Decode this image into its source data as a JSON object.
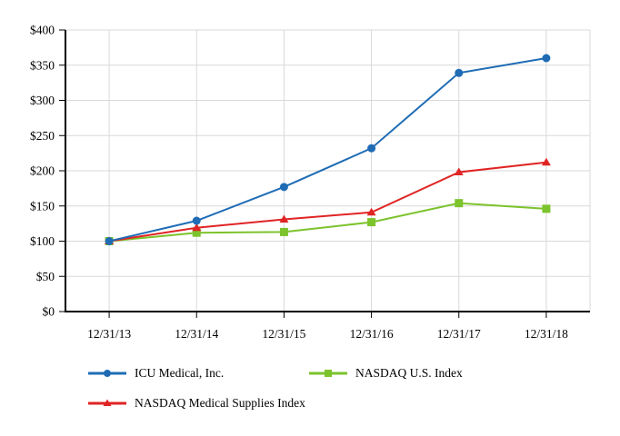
{
  "chart_data": {
    "type": "line",
    "title": "",
    "xlabel": "",
    "ylabel": "",
    "categories": [
      "12/31/13",
      "12/31/14",
      "12/31/15",
      "12/31/16",
      "12/31/17",
      "12/31/18"
    ],
    "series": [
      {
        "name": "ICU Medical, Inc.",
        "marker": "circle",
        "color": "#1f6cb5",
        "values": [
          100,
          129,
          177,
          232,
          339,
          360
        ]
      },
      {
        "name": "NASDAQ U.S. Index",
        "marker": "square",
        "color": "#7cc32c",
        "values": [
          100,
          112,
          113,
          127,
          154,
          146
        ]
      },
      {
        "name": "NASDAQ Medical Supplies Index",
        "marker": "triangle",
        "color": "#e02424",
        "values": [
          100,
          119,
          131,
          141,
          198,
          212
        ]
      }
    ],
    "y_axis": {
      "min": 0,
      "max": 400,
      "step": 50,
      "prefix": "$",
      "tick_labels": [
        "$0",
        "$50",
        "$100",
        "$150",
        "$200",
        "$250",
        "$300",
        "$350",
        "$400"
      ]
    },
    "grid": true,
    "legend_position": "bottom",
    "colors": {
      "gridline": "#d9d9d9",
      "axis": "#000000",
      "text": "#000000",
      "background": "#ffffff"
    }
  }
}
